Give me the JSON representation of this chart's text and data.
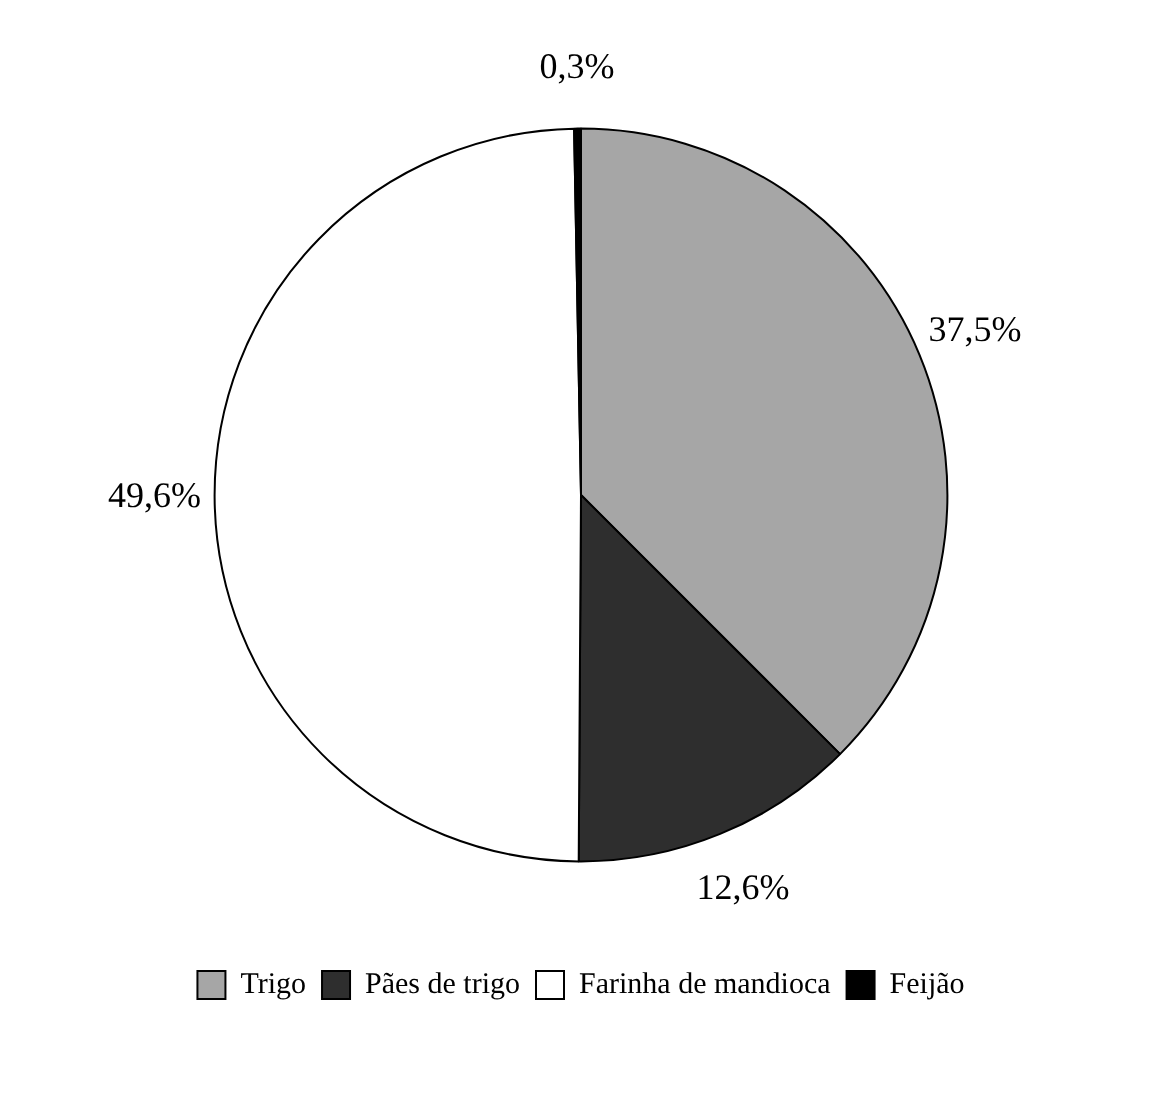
{
  "chart_data": {
    "type": "pie",
    "categories": [
      "Trigo",
      "Pães de trigo",
      "Farinha de mandioca",
      "Feijão"
    ],
    "values": [
      37.5,
      12.6,
      49.6,
      0.3
    ],
    "colors": [
      "#a6a6a6",
      "#2e2e2e",
      "#ffffff",
      "#000000"
    ],
    "value_labels": [
      "37,5%",
      "12,6%",
      "49,6%",
      "0,3%"
    ],
    "legend": "bottom"
  }
}
